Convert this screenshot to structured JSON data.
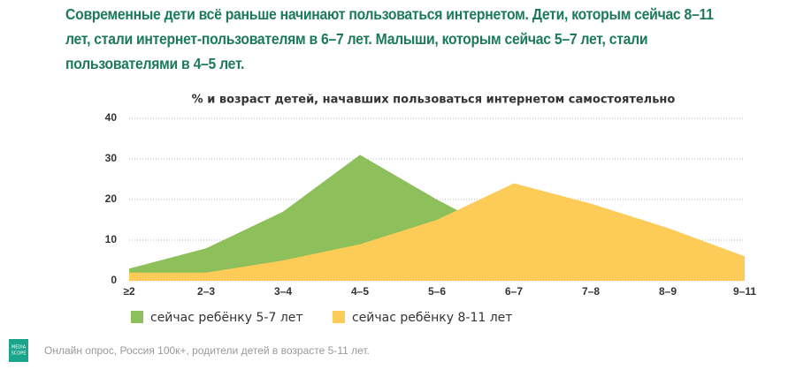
{
  "heading_lines": [
    "Современные дети всё раньше начинают пользоваться интернетом. Дети, которым сейчас 8–11",
    "лет, стали интернет-пользователям в 6–7 лет. Малыши, которым сейчас 5–7 лет, стали",
    "пользователями в 4–5 лет."
  ],
  "chart_data": {
    "type": "area",
    "title": "% и возраст детей, начавших пользоваться интернетом самостоятельно",
    "categories": [
      "≥2",
      "2–3",
      "3–4",
      "4–5",
      "5–6",
      "6–7",
      "7–8",
      "8–9",
      "9–11"
    ],
    "series": [
      {
        "name": "сейчас ребёнку 5-7 лет",
        "color": "#8dc05b",
        "values": [
          3,
          8,
          17,
          31,
          20,
          10,
          5,
          3,
          2
        ]
      },
      {
        "name": "сейчас ребёнку 8-11 лет",
        "color": "#fccb58",
        "values": [
          2,
          2,
          5,
          9,
          15,
          24,
          19,
          13,
          6
        ]
      }
    ],
    "ylim": [
      0,
      40
    ],
    "yticks": [
      0,
      10,
      20,
      30,
      40
    ],
    "grid": true
  },
  "logo": [
    "MEDIA",
    "SCOPE"
  ],
  "footer": "Онлайн опрос, Россия 100к+, родители детей в возрасте 5-11 лет."
}
